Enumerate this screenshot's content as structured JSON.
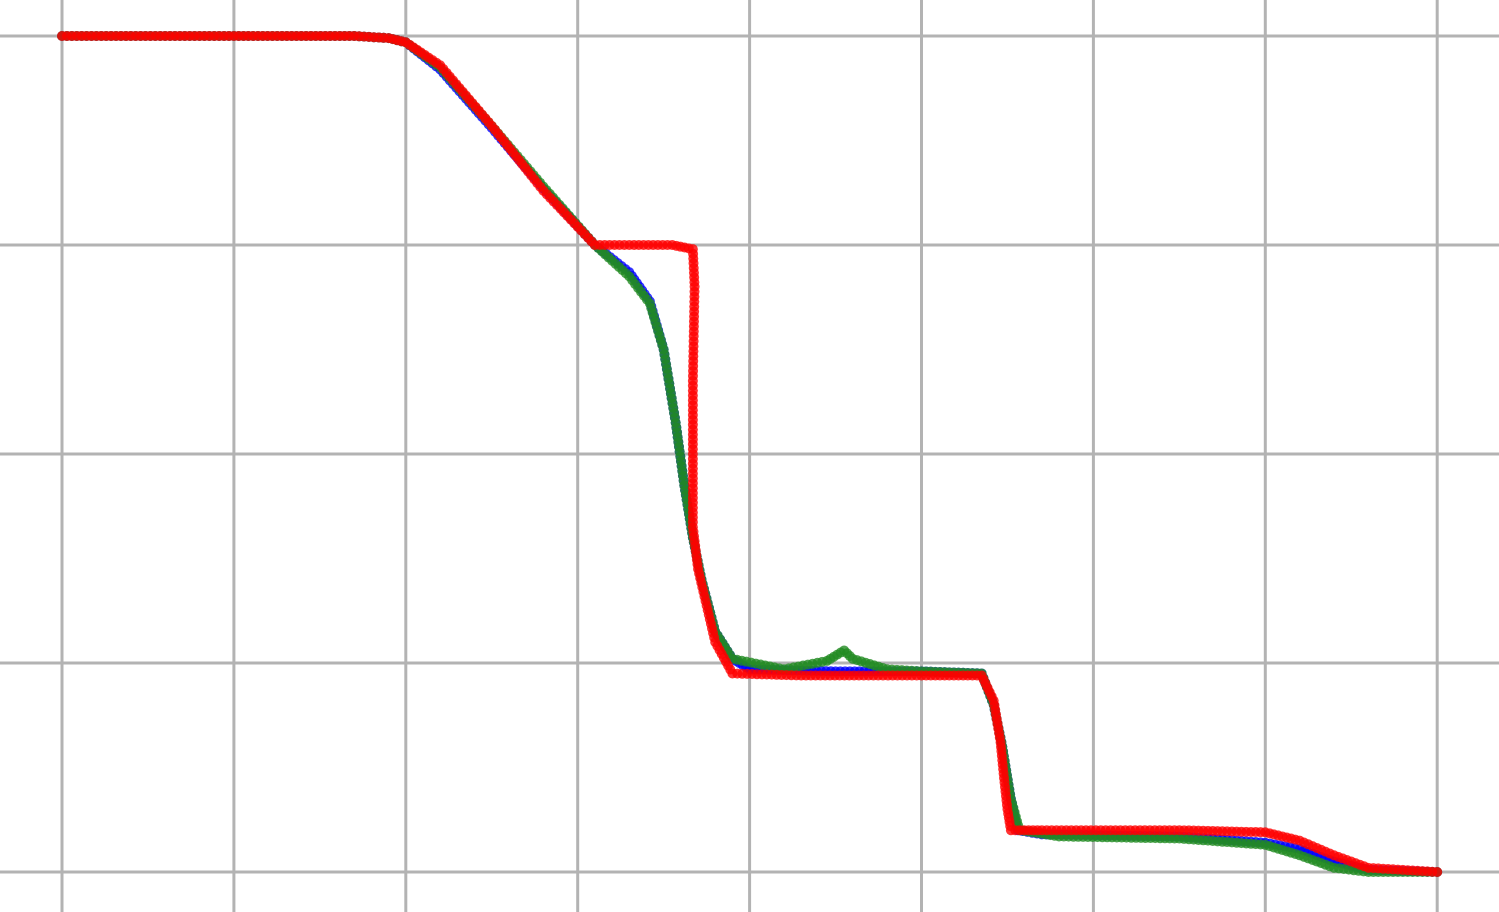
{
  "chart_data": {
    "type": "scatter",
    "title": "",
    "xlabel": "",
    "ylabel": "",
    "grid": true,
    "xlim": [
      0,
      8
    ],
    "ylim": [
      0,
      4
    ],
    "x_gridlines": [
      0,
      1,
      2,
      3,
      4,
      5,
      6,
      7,
      8
    ],
    "y_gridlines": [
      0,
      1,
      2,
      3,
      4
    ],
    "series": [
      {
        "color": "#0000ff",
        "points": [
          [
            0,
            4.0
          ],
          [
            1.0,
            4.0
          ],
          [
            1.7,
            4.0
          ],
          [
            1.9,
            3.99
          ],
          [
            2.0,
            3.97
          ],
          [
            2.2,
            3.84
          ],
          [
            2.5,
            3.56
          ],
          [
            2.8,
            3.27
          ],
          [
            3.1,
            3.0
          ],
          [
            3.3,
            2.87
          ],
          [
            3.42,
            2.73
          ],
          [
            3.5,
            2.5
          ],
          [
            3.57,
            2.15
          ],
          [
            3.62,
            1.85
          ],
          [
            3.67,
            1.6
          ],
          [
            3.72,
            1.4
          ],
          [
            3.8,
            1.15
          ],
          [
            3.9,
            1.02
          ],
          [
            4.0,
            0.97
          ],
          [
            4.5,
            0.96
          ],
          [
            5.0,
            0.96
          ],
          [
            5.35,
            0.95
          ],
          [
            5.42,
            0.8
          ],
          [
            5.47,
            0.6
          ],
          [
            5.52,
            0.35
          ],
          [
            5.56,
            0.2
          ],
          [
            5.7,
            0.18
          ],
          [
            6.5,
            0.17
          ],
          [
            7.0,
            0.14
          ],
          [
            7.2,
            0.11
          ],
          [
            7.4,
            0.05
          ],
          [
            7.6,
            0.01
          ],
          [
            8.0,
            0.0
          ]
        ]
      },
      {
        "color": "#228b22",
        "points": [
          [
            0,
            4.0
          ],
          [
            1.0,
            4.0
          ],
          [
            1.7,
            4.0
          ],
          [
            1.9,
            3.99
          ],
          [
            2.0,
            3.97
          ],
          [
            2.2,
            3.85
          ],
          [
            2.5,
            3.57
          ],
          [
            2.8,
            3.28
          ],
          [
            3.1,
            3.0
          ],
          [
            3.3,
            2.85
          ],
          [
            3.42,
            2.72
          ],
          [
            3.5,
            2.5
          ],
          [
            3.57,
            2.15
          ],
          [
            3.62,
            1.85
          ],
          [
            3.67,
            1.6
          ],
          [
            3.72,
            1.4
          ],
          [
            3.8,
            1.15
          ],
          [
            3.9,
            1.02
          ],
          [
            4.2,
            0.97
          ],
          [
            4.45,
            1.01
          ],
          [
            4.55,
            1.06
          ],
          [
            4.6,
            1.02
          ],
          [
            4.8,
            0.97
          ],
          [
            5.0,
            0.96
          ],
          [
            5.35,
            0.95
          ],
          [
            5.42,
            0.8
          ],
          [
            5.47,
            0.6
          ],
          [
            5.52,
            0.35
          ],
          [
            5.57,
            0.2
          ],
          [
            5.8,
            0.17
          ],
          [
            6.5,
            0.16
          ],
          [
            7.0,
            0.13
          ],
          [
            7.2,
            0.08
          ],
          [
            7.4,
            0.02
          ],
          [
            7.6,
            0.0
          ],
          [
            8.0,
            0.0
          ]
        ]
      },
      {
        "color": "#ff0000",
        "points": [
          [
            0,
            4.0
          ],
          [
            1.0,
            4.0
          ],
          [
            1.7,
            4.0
          ],
          [
            1.9,
            3.99
          ],
          [
            2.0,
            3.97
          ],
          [
            2.2,
            3.86
          ],
          [
            2.5,
            3.57
          ],
          [
            2.8,
            3.26
          ],
          [
            3.1,
            3.0
          ],
          [
            3.3,
            3.0
          ],
          [
            3.55,
            3.0
          ],
          [
            3.67,
            2.98
          ],
          [
            3.68,
            2.8
          ],
          [
            3.67,
            2.35
          ],
          [
            3.67,
            1.65
          ],
          [
            3.7,
            1.45
          ],
          [
            3.8,
            1.1
          ],
          [
            3.9,
            0.95
          ],
          [
            4.3,
            0.94
          ],
          [
            5.0,
            0.94
          ],
          [
            5.35,
            0.94
          ],
          [
            5.42,
            0.82
          ],
          [
            5.46,
            0.62
          ],
          [
            5.48,
            0.45
          ],
          [
            5.5,
            0.3
          ],
          [
            5.52,
            0.2
          ],
          [
            5.7,
            0.2
          ],
          [
            6.5,
            0.2
          ],
          [
            7.0,
            0.19
          ],
          [
            7.2,
            0.15
          ],
          [
            7.4,
            0.08
          ],
          [
            7.6,
            0.02
          ],
          [
            8.0,
            0.0
          ]
        ]
      }
    ]
  }
}
